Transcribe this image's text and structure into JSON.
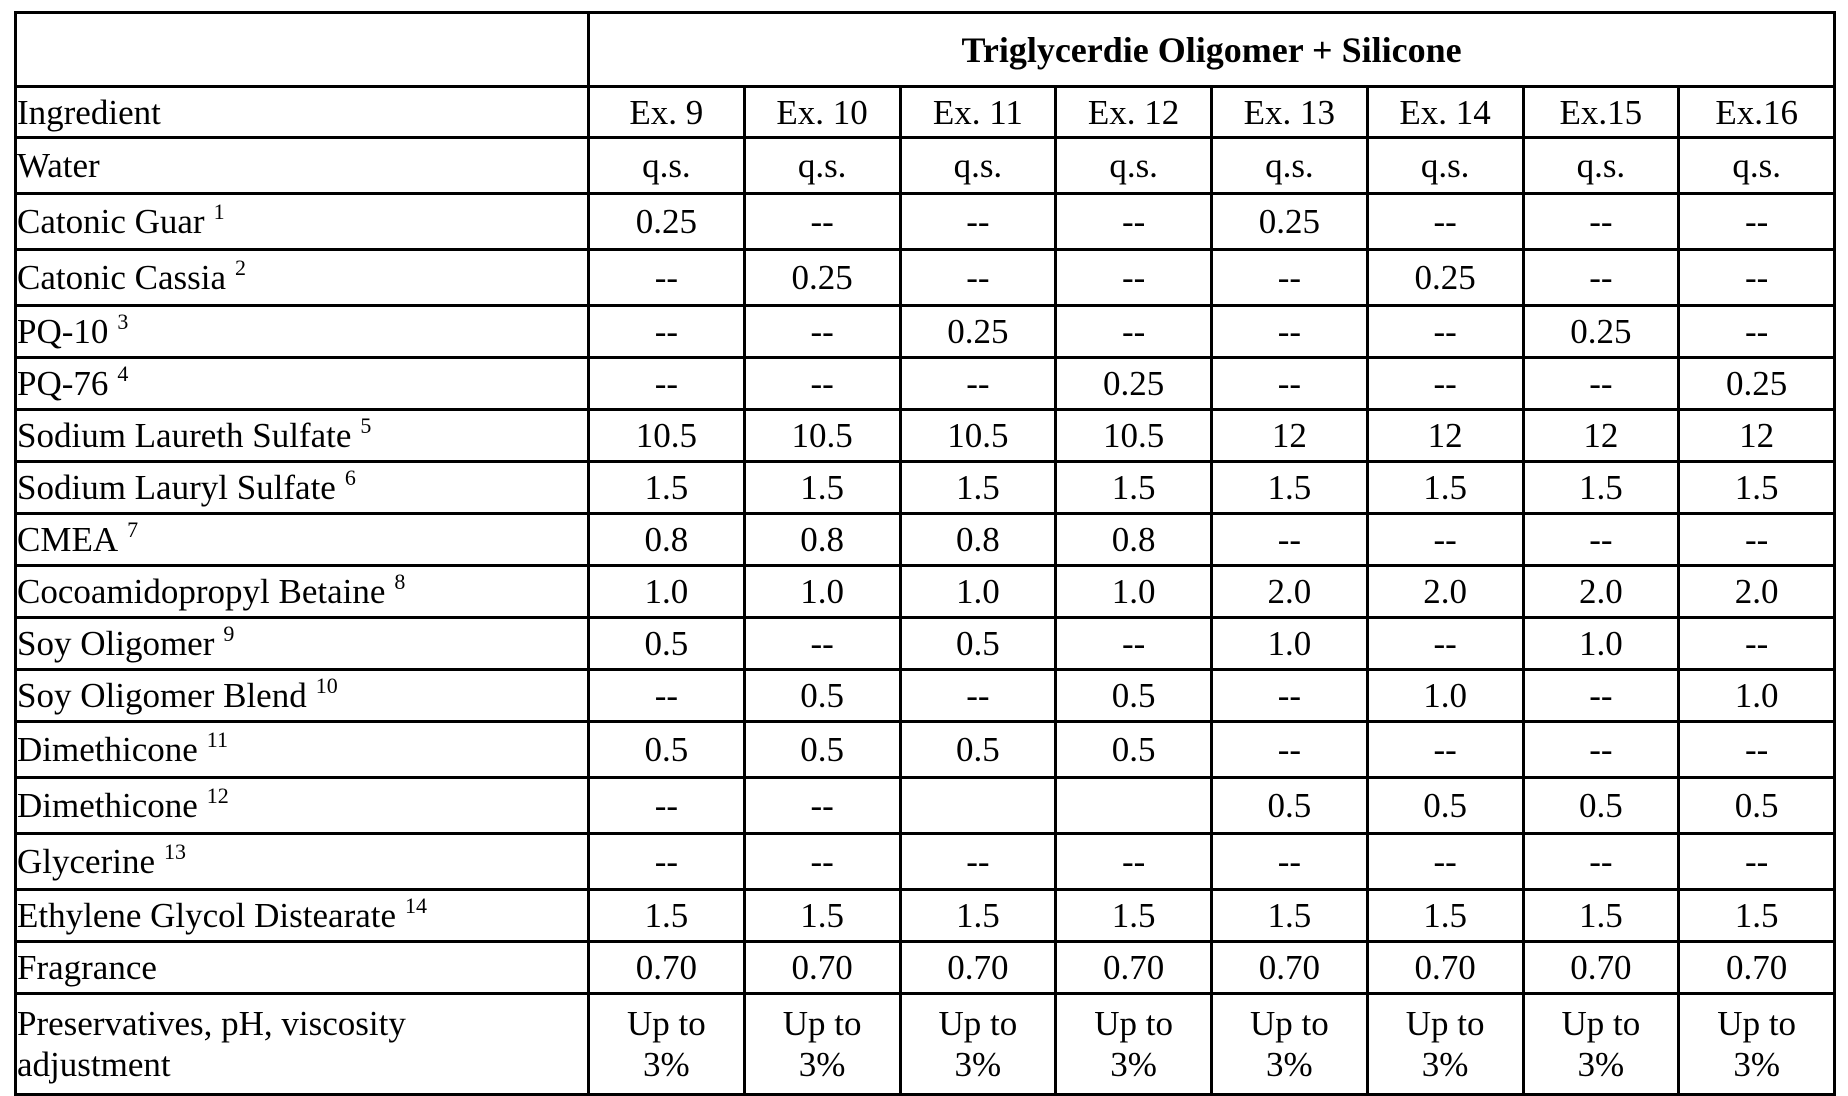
{
  "table": {
    "group_title": "Triglycerdie Oligomer + Silicone",
    "header": {
      "label": "Ingredient",
      "columns": [
        "Ex. 9",
        "Ex. 10",
        "Ex. 11",
        "Ex. 12",
        "Ex. 13",
        "Ex. 14",
        "Ex.15",
        "Ex.16"
      ]
    },
    "rows": [
      {
        "ingredient": "Water",
        "footnote": "",
        "values": [
          "q.s.",
          "q.s.",
          "q.s.",
          "q.s.",
          "q.s.",
          "q.s.",
          "q.s.",
          "q.s."
        ]
      },
      {
        "ingredient": "Catonic Guar",
        "footnote": "1",
        "values": [
          "0.25",
          "--",
          "--",
          "--",
          "0.25",
          "--",
          "--",
          "--"
        ]
      },
      {
        "ingredient": "Catonic Cassia",
        "footnote": "2",
        "values": [
          "--",
          "0.25",
          "--",
          "--",
          "--",
          "0.25",
          "--",
          "--"
        ]
      },
      {
        "ingredient": "PQ-10",
        "footnote": "3",
        "values": [
          "--",
          "--",
          "0.25",
          "--",
          "--",
          "--",
          "0.25",
          "--"
        ]
      },
      {
        "ingredient": "PQ-76",
        "footnote": "4",
        "values": [
          "--",
          "--",
          "--",
          "0.25",
          "--",
          "--",
          "--",
          "0.25"
        ]
      },
      {
        "ingredient": "Sodium Laureth Sulfate",
        "footnote": "5",
        "values": [
          "10.5",
          "10.5",
          "10.5",
          "10.5",
          "12",
          "12",
          "12",
          "12"
        ]
      },
      {
        "ingredient": "Sodium Lauryl Sulfate",
        "footnote": "6",
        "values": [
          "1.5",
          "1.5",
          "1.5",
          "1.5",
          "1.5",
          "1.5",
          "1.5",
          "1.5"
        ]
      },
      {
        "ingredient": "CMEA",
        "footnote": "7",
        "values": [
          "0.8",
          "0.8",
          "0.8",
          "0.8",
          "--",
          "--",
          "--",
          "--"
        ]
      },
      {
        "ingredient": "Cocoamidopropyl Betaine",
        "footnote": "8",
        "values": [
          "1.0",
          "1.0",
          "1.0",
          "1.0",
          "2.0",
          "2.0",
          "2.0",
          "2.0"
        ]
      },
      {
        "ingredient": "Soy Oligomer",
        "footnote": "9",
        "values": [
          "0.5",
          "--",
          "0.5",
          "--",
          "1.0",
          "--",
          "1.0",
          "--"
        ]
      },
      {
        "ingredient": "Soy Oligomer Blend",
        "footnote": "10",
        "values": [
          "--",
          "0.5",
          "--",
          "0.5",
          "--",
          "1.0",
          "--",
          "1.0"
        ]
      },
      {
        "ingredient": "Dimethicone",
        "footnote": "11",
        "values": [
          "0.5",
          "0.5",
          "0.5",
          "0.5",
          "--",
          "--",
          "--",
          "--"
        ]
      },
      {
        "ingredient": "Dimethicone",
        "footnote": "12",
        "values": [
          "--",
          "--",
          "",
          "",
          "0.5",
          "0.5",
          "0.5",
          "0.5"
        ]
      },
      {
        "ingredient": "Glycerine",
        "footnote": "13",
        "values": [
          "--",
          "--",
          "--",
          "--",
          "--",
          "--",
          "--",
          "--"
        ]
      },
      {
        "ingredient": "Ethylene Glycol Distearate",
        "footnote": "14",
        "values": [
          "1.5",
          "1.5",
          "1.5",
          "1.5",
          "1.5",
          "1.5",
          "1.5",
          "1.5"
        ]
      },
      {
        "ingredient": "Fragrance",
        "footnote": "",
        "values": [
          "0.70",
          "0.70",
          "0.70",
          "0.70",
          "0.70",
          "0.70",
          "0.70",
          "0.70"
        ]
      }
    ],
    "last_row": {
      "ingredient_line1": "Preservatives, pH, viscosity",
      "ingredient_line2": "adjustment",
      "value_line1": "Up to",
      "value_line2": "3%",
      "count": 8
    }
  }
}
